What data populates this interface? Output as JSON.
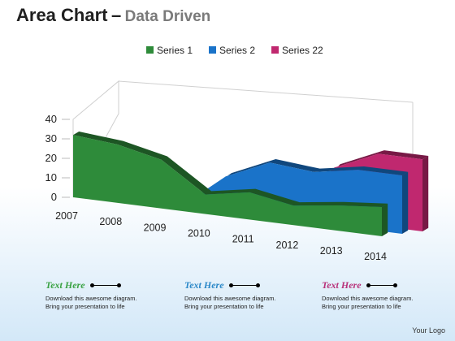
{
  "title": "Area Chart",
  "dash": "–",
  "subtitle": "Data Driven",
  "chart_data": {
    "type": "area",
    "categories": [
      "2007",
      "2008",
      "2009",
      "2010",
      "2011",
      "2012",
      "2013",
      "2014"
    ],
    "series": [
      {
        "name": "Series 1",
        "color": "#2e8b3a",
        "values": [
          32,
          30,
          25,
          10,
          14,
          10,
          13,
          15
        ]
      },
      {
        "name": "Series 2",
        "color": "#1a73c9",
        "values": [
          0,
          0,
          0,
          18,
          28,
          26,
          30,
          30
        ]
      },
      {
        "name": "Series 22",
        "color": "#c0286f",
        "values": [
          0,
          0,
          0,
          0,
          0,
          27,
          37,
          37
        ]
      }
    ],
    "yticks": [
      "0",
      "10",
      "20",
      "30",
      "40"
    ],
    "ylim": [
      0,
      40
    ],
    "legend": "top",
    "grid": false
  },
  "cards": [
    {
      "heading": "Text Here",
      "color": "#3aa243",
      "lines": [
        "Download this awesome diagram.",
        "Bring your presentation to life"
      ]
    },
    {
      "heading": "Text Here",
      "color": "#2b88c8",
      "lines": [
        "Download this awesome diagram.",
        "Bring your presentation to life"
      ]
    },
    {
      "heading": "Text Here",
      "color": "#b8317a",
      "lines": [
        "Download this awesome diagram.",
        "Bring your presentation to life"
      ]
    }
  ],
  "logo": "Your Logo"
}
